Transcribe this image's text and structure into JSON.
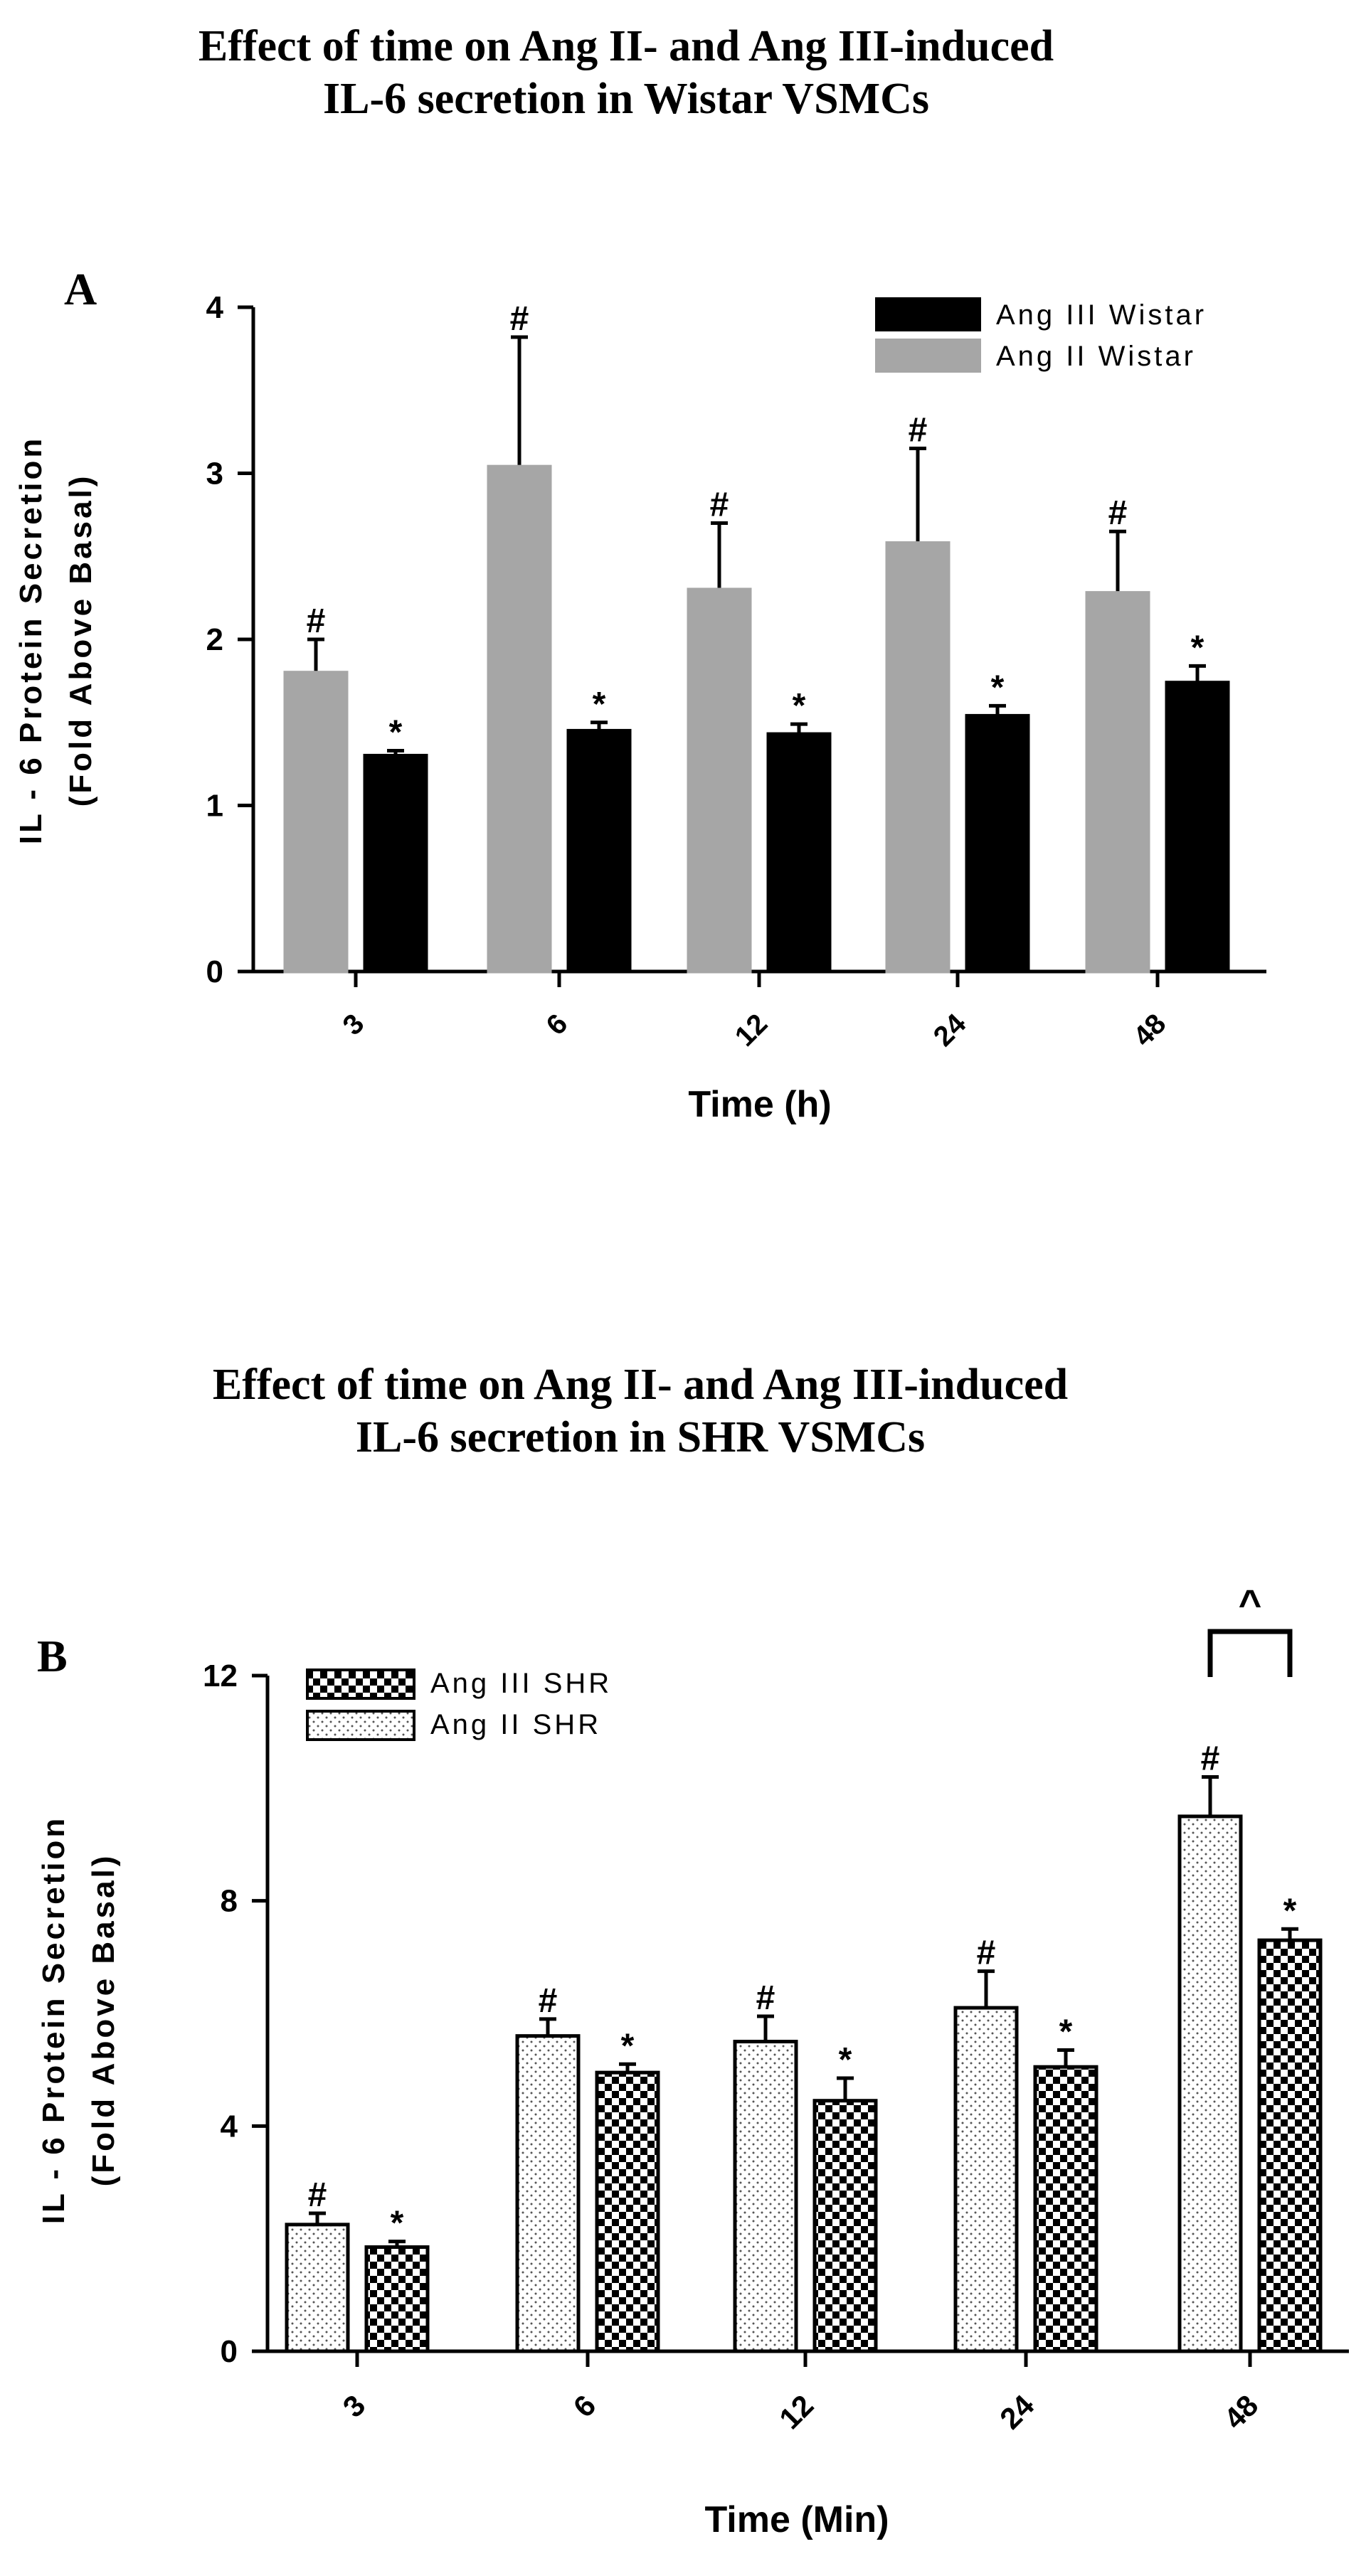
{
  "colors": {
    "ang3_wistar": "#000000",
    "ang2_wistar": "#a6a6a6",
    "axis": "#000000"
  },
  "chart_data": [
    {
      "type": "bar",
      "panel_label": "A",
      "title_lines": [
        "Effect of time on Ang II- and Ang III-induced",
        "IL-6 secretion in Wistar VSMCs"
      ],
      "xlabel": "Time (h)",
      "ylabel_lines": [
        "IL - 6 Protein Secretion",
        "(Fold Above Basal)"
      ],
      "ylim": [
        0,
        4
      ],
      "yticks": [
        0,
        1,
        2,
        3,
        4
      ],
      "categories": [
        "3",
        "6",
        "12",
        "24",
        "48"
      ],
      "legend_position": "top-right",
      "series": [
        {
          "name": "Ang II Wistar",
          "legend_order": 2,
          "style": "solid-gray",
          "values": [
            1.8,
            3.04,
            2.3,
            2.58,
            2.28
          ],
          "errors": [
            0.2,
            0.78,
            0.4,
            0.57,
            0.37
          ],
          "annotation": "#"
        },
        {
          "name": "Ang III Wistar",
          "legend_order": 1,
          "style": "solid-black",
          "values": [
            1.3,
            1.45,
            1.43,
            1.54,
            1.74
          ],
          "errors": [
            0.03,
            0.05,
            0.06,
            0.06,
            0.1
          ],
          "annotation": "*"
        }
      ]
    },
    {
      "type": "bar",
      "panel_label": "B",
      "title_lines": [
        "Effect of time on Ang II- and Ang III-induced",
        "IL-6 secretion in SHR VSMCs"
      ],
      "xlabel": "Time (Min)",
      "ylabel_lines": [
        "IL - 6 Protein Secretion",
        "(Fold Above Basal)"
      ],
      "ylim": [
        0,
        12
      ],
      "yticks": [
        0,
        4,
        8,
        12
      ],
      "categories": [
        "3",
        "6",
        "12",
        "24",
        "48"
      ],
      "legend_position": "top-left",
      "bracket": {
        "category": "48",
        "label": "^"
      },
      "series": [
        {
          "name": "Ang II SHR",
          "legend_order": 2,
          "style": "dotted",
          "values": [
            2.25,
            5.6,
            5.5,
            6.1,
            9.5
          ],
          "errors": [
            0.2,
            0.3,
            0.45,
            0.65,
            0.7
          ],
          "annotation": "#"
        },
        {
          "name": "Ang III SHR",
          "legend_order": 1,
          "style": "checkered",
          "values": [
            1.85,
            4.95,
            4.45,
            5.05,
            7.3
          ],
          "errors": [
            0.1,
            0.15,
            0.4,
            0.3,
            0.2
          ],
          "annotation": "*"
        }
      ]
    }
  ]
}
